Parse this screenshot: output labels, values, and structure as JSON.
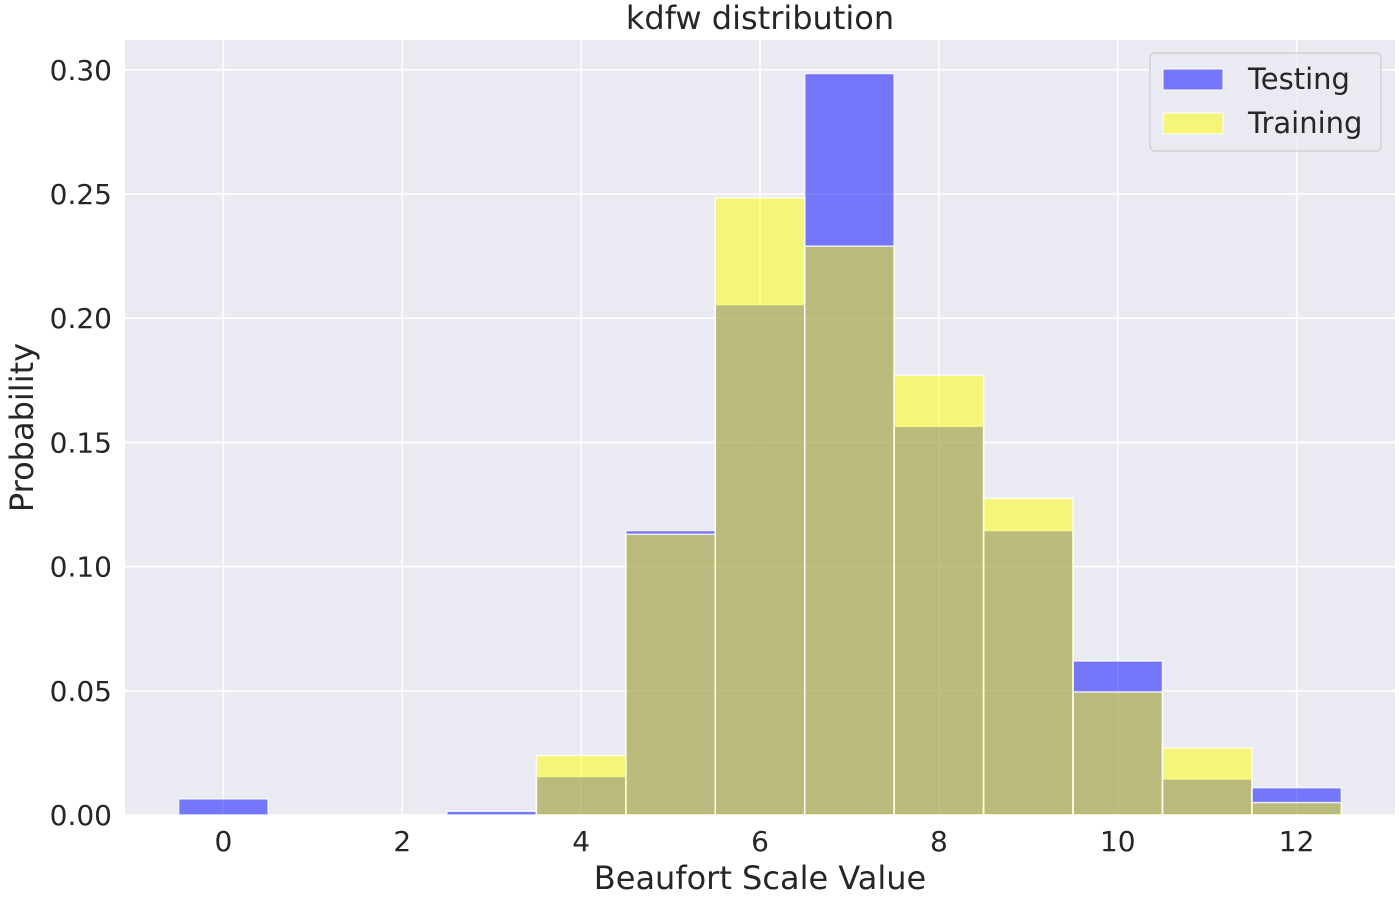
{
  "chart_data": {
    "type": "bar",
    "title": "kdfw distribution",
    "xlabel": "Beaufort Scale Value",
    "ylabel": "Probability",
    "xlim": [
      -1.1,
      13.1
    ],
    "ylim": [
      0,
      0.312
    ],
    "xticks": [
      0,
      2,
      4,
      6,
      8,
      10,
      12
    ],
    "yticks": [
      0.0,
      0.05,
      0.1,
      0.15,
      0.2,
      0.25,
      0.3
    ],
    "ytick_labels": [
      "0.00",
      "0.05",
      "0.10",
      "0.15",
      "0.20",
      "0.25",
      "0.30"
    ],
    "grid": true,
    "legend_position": "top-right",
    "bin_width": 1,
    "x": [
      0,
      1,
      2,
      3,
      4,
      5,
      6,
      7,
      8,
      9,
      10,
      11,
      12
    ],
    "series": [
      {
        "name": "Testing",
        "color": "#0000ff",
        "opacity": 0.5,
        "values": [
          0.0065,
          0,
          0,
          0.0015,
          0.0155,
          0.1145,
          0.2055,
          0.2985,
          0.1565,
          0.1145,
          0.062,
          0.0145,
          0.011
        ]
      },
      {
        "name": "Training",
        "color": "#ffff00",
        "opacity": 0.5,
        "values": [
          0,
          0,
          0,
          0,
          0.024,
          0.113,
          0.2485,
          0.229,
          0.177,
          0.1275,
          0.0495,
          0.027,
          0.005
        ]
      }
    ]
  },
  "colors": {
    "plot_background": "#eaeaf2",
    "grid": "#ffffff",
    "text": "#262626"
  }
}
